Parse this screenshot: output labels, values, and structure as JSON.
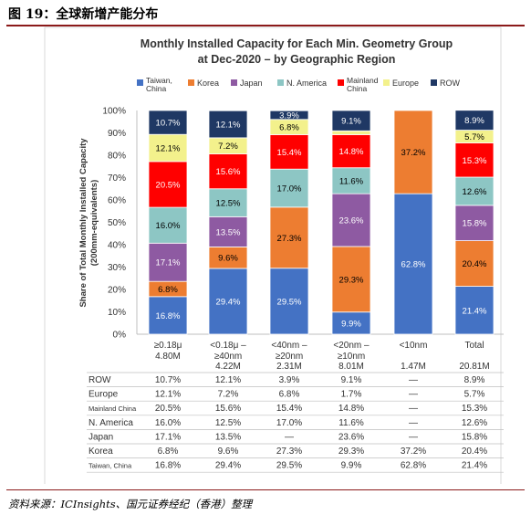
{
  "figure": {
    "title": "图 19：全球新增产能分布",
    "source": "资料来源：ICInsights、国元证券经纪（香港）整理"
  },
  "chart_data": {
    "type": "bar",
    "stacked": true,
    "title_line1": "Monthly Installed Capacity for Each Min. Geometry Group",
    "title_line2": "at Dec-2020 – by Geographic Region",
    "ylabel_line1": "Share of Total Monthly Installed Capacity",
    "ylabel_line2": "(200mm-equivalents)",
    "ylim": [
      0,
      100
    ],
    "yticks": [
      "0%",
      "10%",
      "20%",
      "30%",
      "40%",
      "50%",
      "60%",
      "70%",
      "80%",
      "90%",
      "100%"
    ],
    "grid": false,
    "legend_position": "top",
    "categories": [
      {
        "line1": "≥0.18μ",
        "line2": "4.80M",
        "table_total": ""
      },
      {
        "line1": "<0.18μ –",
        "line2": "≥40nm",
        "line3": "4.22M",
        "table_total": ""
      },
      {
        "line1": "<40nm –",
        "line2": "≥20nm",
        "line3": "2.31M",
        "table_total": ""
      },
      {
        "line1": "<20nm –",
        "line2": "≥10nm",
        "line3": "8.01M",
        "table_total": ""
      },
      {
        "line1": "<10nm",
        "line2": "",
        "line3": "1.47M",
        "table_total": ""
      },
      {
        "line1": "Total",
        "line2": "",
        "line3": "20.81M",
        "table_total": ""
      }
    ],
    "series": [
      {
        "name": "Taiwan, China",
        "legend_line1": "Taiwan,",
        "legend_line2": "China",
        "table_label": "Taiwan, China",
        "table_small": true,
        "color": "#4472c4",
        "label_color": "#ffffff",
        "values": [
          16.8,
          29.4,
          29.5,
          9.9,
          62.8,
          21.4
        ],
        "labels": [
          "16.8%",
          "29.4%",
          "29.5%",
          "9.9%",
          "62.8%",
          "21.4%"
        ],
        "table": [
          "16.8%",
          "29.4%",
          "29.5%",
          "9.9%",
          "62.8%",
          "21.4%"
        ]
      },
      {
        "name": "Korea",
        "legend_line1": "Korea",
        "legend_line2": "",
        "table_label": "Korea",
        "table_small": false,
        "color": "#ed7d31",
        "label_color": "#000000",
        "values": [
          6.8,
          9.6,
          27.3,
          29.3,
          37.2,
          20.4
        ],
        "labels": [
          "6.8%",
          "9.6%",
          "27.3%",
          "29.3%",
          "37.2%",
          "20.4%"
        ],
        "table": [
          "6.8%",
          "9.6%",
          "27.3%",
          "29.3%",
          "37.2%",
          "20.4%"
        ]
      },
      {
        "name": "Japan",
        "legend_line1": "Japan",
        "legend_line2": "",
        "table_label": "Japan",
        "table_small": false,
        "color": "#8e5aa2",
        "label_color": "#ffffff",
        "values": [
          17.1,
          13.5,
          0,
          23.6,
          0,
          15.8
        ],
        "labels": [
          "17.1%",
          "13.5%",
          "",
          "23.6%",
          "",
          "15.8%"
        ],
        "table": [
          "17.1%",
          "13.5%",
          "—",
          "23.6%",
          "—",
          "15.8%"
        ]
      },
      {
        "name": "N. America",
        "legend_line1": "N. America",
        "legend_line2": "",
        "table_label": "N. America",
        "table_small": false,
        "color": "#8dc6c4",
        "label_color": "#000000",
        "values": [
          16.0,
          12.5,
          17.0,
          11.6,
          0,
          12.6
        ],
        "labels": [
          "16.0%",
          "12.5%",
          "17.0%",
          "11.6%",
          "",
          "12.6%"
        ],
        "table": [
          "16.0%",
          "12.5%",
          "17.0%",
          "11.6%",
          "—",
          "12.6%"
        ]
      },
      {
        "name": "Mainland China",
        "legend_line1": "Mainland",
        "legend_line2": "China",
        "table_label": "Mainland China",
        "table_small": true,
        "color": "#ff0000",
        "label_color": "#ffffff",
        "values": [
          20.5,
          15.6,
          15.4,
          14.8,
          0,
          15.3
        ],
        "labels": [
          "20.5%",
          "15.6%",
          "15.4%",
          "14.8%",
          "",
          "15.3%"
        ],
        "table": [
          "20.5%",
          "15.6%",
          "15.4%",
          "14.8%",
          "—",
          "15.3%"
        ]
      },
      {
        "name": "Europe",
        "legend_line1": "Europe",
        "legend_line2": "",
        "table_label": "Europe",
        "table_small": false,
        "color": "#f3f18c",
        "label_color": "#000000",
        "values": [
          12.1,
          7.2,
          6.8,
          1.7,
          0,
          5.7
        ],
        "labels": [
          "12.1%",
          "7.2%",
          "6.8%",
          "",
          "",
          "5.7%"
        ],
        "table": [
          "12.1%",
          "7.2%",
          "6.8%",
          "1.7%",
          "—",
          "5.7%"
        ]
      },
      {
        "name": "ROW",
        "legend_line1": "ROW",
        "legend_line2": "",
        "table_label": "ROW",
        "table_small": false,
        "color": "#1f3864",
        "label_color": "#ffffff",
        "values": [
          10.7,
          12.1,
          3.9,
          9.1,
          0,
          8.9
        ],
        "labels": [
          "10.7%",
          "12.1%",
          "3.9%",
          "9.1%",
          "",
          "8.9%"
        ],
        "table": [
          "10.7%",
          "12.1%",
          "3.9%",
          "9.1%",
          "—",
          "8.9%"
        ]
      }
    ]
  }
}
